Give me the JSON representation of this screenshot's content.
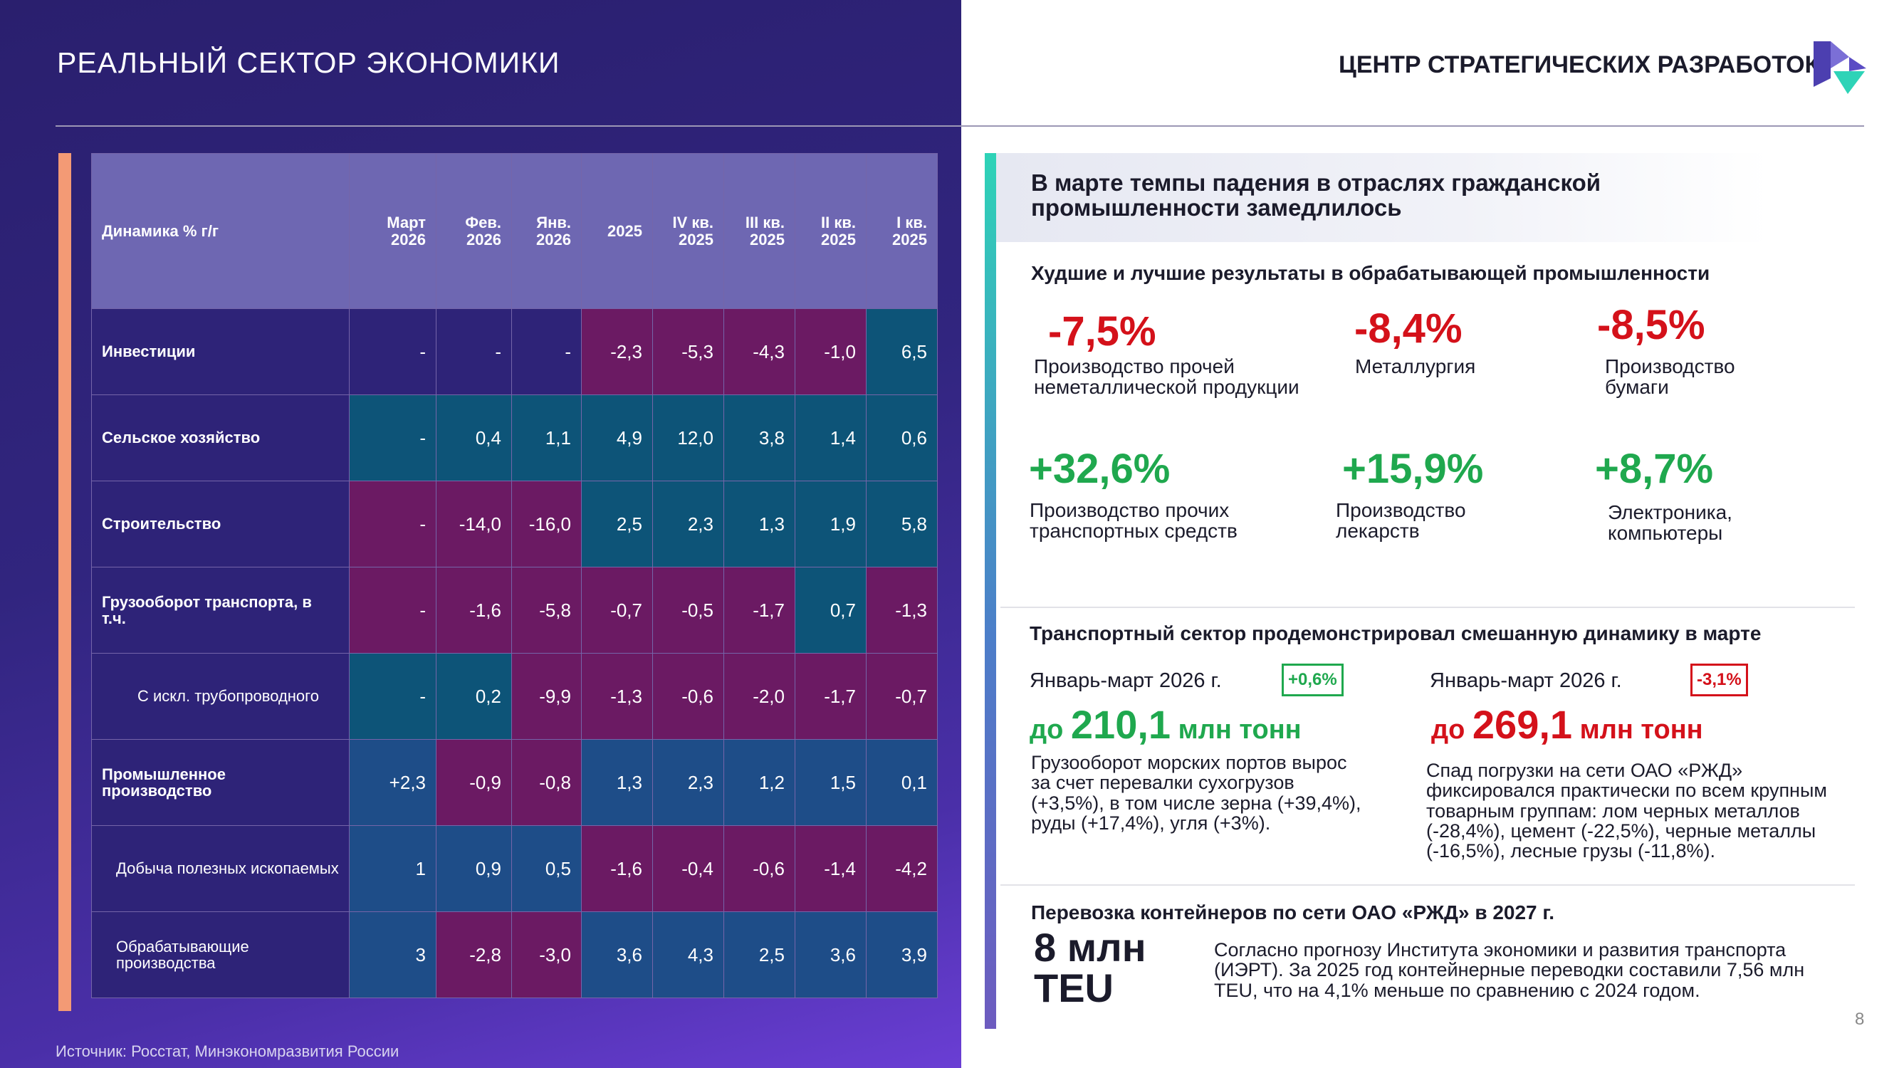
{
  "header": {
    "left_title": "РЕАЛЬНЫЙ СЕКТОР ЭКОНОМИКИ",
    "brand": "ЦЕНТР СТРАТЕГИЧЕСКИХ РАЗРАБОТОК"
  },
  "table": {
    "header_label": "Динамика % г/г",
    "columns": [
      {
        "l1": "Март",
        "l2": "2026"
      },
      {
        "l1": "Фев.",
        "l2": "2026"
      },
      {
        "l1": "Янв.",
        "l2": "2026"
      },
      {
        "l1": "2025",
        "l2": ""
      },
      {
        "l1": "IV кв.",
        "l2": "2025"
      },
      {
        "l1": "III кв.",
        "l2": "2025"
      },
      {
        "l1": "II кв.",
        "l2": "2025"
      },
      {
        "l1": "I кв.",
        "l2": "2025"
      }
    ],
    "rows": [
      {
        "label": "Инвестиции",
        "values": [
          "-",
          "-",
          "-",
          "-2,3",
          "-5,3",
          "-4,3",
          "-1,0",
          "6,5"
        ]
      },
      {
        "label": "Сельское хозяйство",
        "values": [
          "-",
          "0,4",
          "1,1",
          "4,9",
          "12,0",
          "3,8",
          "1,4",
          "0,6"
        ]
      },
      {
        "label": "Строительство",
        "values": [
          "-",
          "-14,0",
          "-16,0",
          "2,5",
          "2,3",
          "1,3",
          "1,9",
          "5,8"
        ]
      },
      {
        "label": "Грузооборот транспорта, в т.ч.",
        "values": [
          "-",
          "-1,6",
          "-5,8",
          "-0,7",
          "-0,5",
          "-1,7",
          "0,7",
          "-1,3"
        ]
      },
      {
        "label": "С искл. трубопроводного",
        "values": [
          "-",
          "0,2",
          "-9,9",
          "-1,3",
          "-0,6",
          "-2,0",
          "-1,7",
          "-0,7"
        ]
      },
      {
        "label": "Промышленное производство",
        "values": [
          "+2,3",
          "-0,9",
          "-0,8",
          "1,3",
          "2,3",
          "1,2",
          "1,5",
          "0,1"
        ]
      },
      {
        "label": "Добыча полезных ископаемых",
        "values": [
          "1",
          "0,9",
          "0,5",
          "-1,6",
          "-0,4",
          "-0,6",
          "-1,4",
          "-4,2"
        ]
      },
      {
        "label": "Обрабатывающие производства",
        "values": [
          "3",
          "-2,8",
          "-3,0",
          "3,6",
          "4,3",
          "2,5",
          "3,6",
          "3,9"
        ]
      }
    ],
    "colors": {
      "neutral": "#2e2378",
      "teal": "#0d5478",
      "magenta": "#6b1a63",
      "blue": "#1e4d88"
    }
  },
  "source": "Источник: Росстат, Минэкономразвития России",
  "right": {
    "headline": "В марте темпы падения в отраслях гражданской промышленности замедлилось",
    "section1_title": "Худшие и лучшие результаты в обрабатывающей промышленности",
    "worst": [
      {
        "value": "-7,5%",
        "label": "Производство прочей неметаллической продукции"
      },
      {
        "value": "-8,4%",
        "label": "Металлургия"
      },
      {
        "value": "-8,5%",
        "label": "Производство бумаги"
      }
    ],
    "best": [
      {
        "value": "+32,6%",
        "label": "Производство прочих транспортных средств"
      },
      {
        "value": "+15,9%",
        "label": "Производство лекарств"
      },
      {
        "value": "+8,7%",
        "label": "Электроника, компьютеры"
      }
    ],
    "section2_title": "Транспортный сектор продемонстрировал смешанную динамику в марте",
    "ports": {
      "period": "Январь-март 2026 г.",
      "badge": "+0,6%",
      "prefix": "до",
      "amount": "210,1",
      "unit": "млн тонн",
      "text": "Грузооборот морских портов вырос за счет перевалки сухогрузов (+3,5%), в том числе зерна (+39,4%), руды (+17,4%), угля (+3%)."
    },
    "rzd": {
      "period": "Январь-март 2026 г.",
      "badge": "-3,1%",
      "prefix": "до",
      "amount": "269,1",
      "unit": "млн тонн",
      "text": "Спад погрузки на сети ОАО «РЖД» фиксировался практически по всем крупным товарным группам: лом черных металлов (-28,4%), цемент (-22,5%), черные металлы (-16,5%), лесные грузы (-11,8%)."
    },
    "section3_title": "Перевозка контейнеров по сети ОАО «РЖД» в 2027 г.",
    "containers": {
      "value_line1": "8 млн",
      "value_line2": "TEU",
      "text": "Согласно прогнозу Института экономики и развития транспорта (ИЭРТ). За 2025 год контейнерные переводки составили 7,56 млн TEU, что на 4,1% меньше по сравнению с 2024 годом."
    },
    "page_number": "8",
    "colors": {
      "red": "#d4111a",
      "green": "#1fa84e"
    }
  }
}
